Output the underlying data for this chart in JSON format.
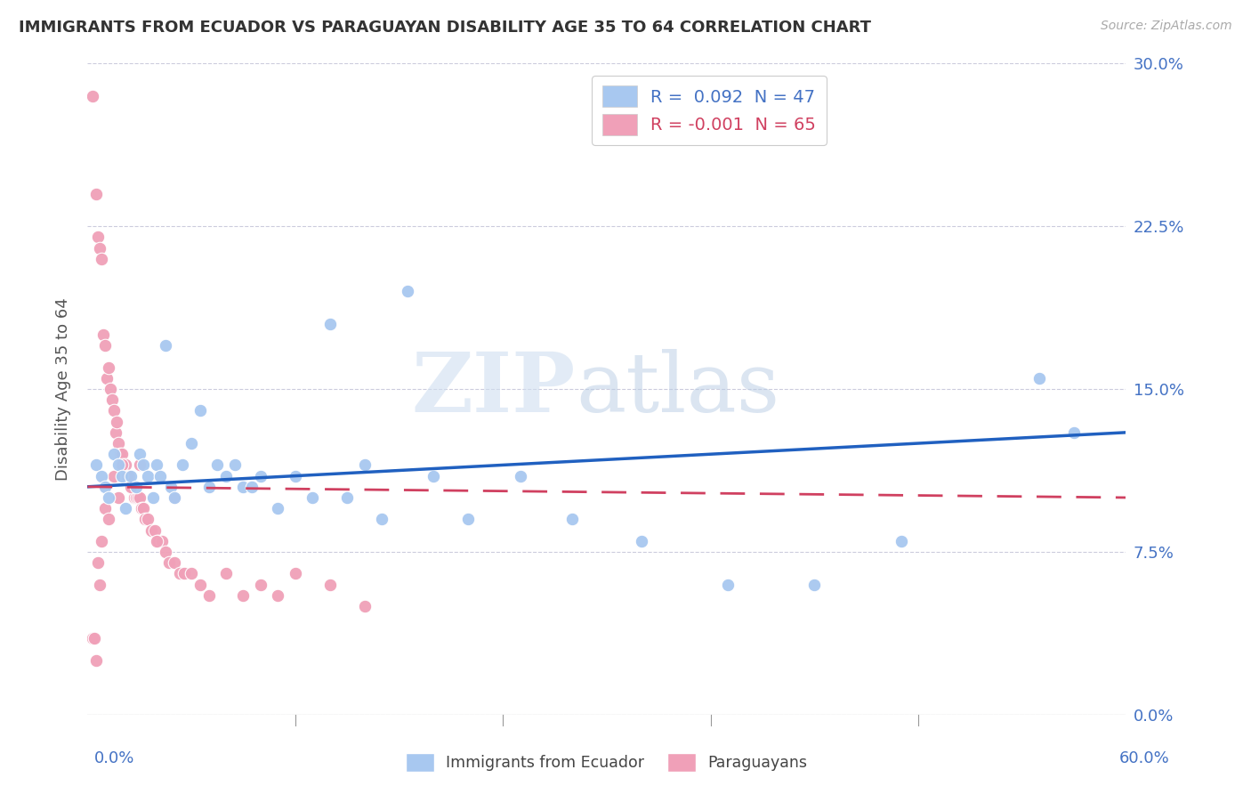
{
  "title": "IMMIGRANTS FROM ECUADOR VS PARAGUAYAN DISABILITY AGE 35 TO 64 CORRELATION CHART",
  "source": "Source: ZipAtlas.com",
  "ylabel": "Disability Age 35 to 64",
  "ytick_labels": [
    "0.0%",
    "7.5%",
    "15.0%",
    "22.5%",
    "30.0%"
  ],
  "ytick_values": [
    0.0,
    0.075,
    0.15,
    0.225,
    0.3
  ],
  "xlim": [
    0.0,
    0.6
  ],
  "ylim": [
    0.0,
    0.3
  ],
  "legend_blue_R": " 0.092",
  "legend_blue_N": "47",
  "legend_pink_R": "-0.001",
  "legend_pink_N": "65",
  "watermark_zip": "ZIP",
  "watermark_atlas": "atlas",
  "blue_color": "#a8c8f0",
  "pink_color": "#f0a0b8",
  "trendline_blue": "#2060c0",
  "trendline_pink": "#d04060",
  "blue_scatter_x": [
    0.005,
    0.008,
    0.01,
    0.012,
    0.015,
    0.018,
    0.02,
    0.022,
    0.025,
    0.028,
    0.03,
    0.032,
    0.035,
    0.038,
    0.04,
    0.042,
    0.045,
    0.048,
    0.05,
    0.055,
    0.06,
    0.065,
    0.07,
    0.075,
    0.08,
    0.085,
    0.09,
    0.095,
    0.1,
    0.11,
    0.12,
    0.13,
    0.14,
    0.15,
    0.16,
    0.17,
    0.185,
    0.2,
    0.22,
    0.25,
    0.28,
    0.32,
    0.37,
    0.42,
    0.47,
    0.55,
    0.57
  ],
  "blue_scatter_y": [
    0.115,
    0.11,
    0.105,
    0.1,
    0.12,
    0.115,
    0.11,
    0.095,
    0.11,
    0.105,
    0.12,
    0.115,
    0.11,
    0.1,
    0.115,
    0.11,
    0.17,
    0.105,
    0.1,
    0.115,
    0.125,
    0.14,
    0.105,
    0.115,
    0.11,
    0.115,
    0.105,
    0.105,
    0.11,
    0.095,
    0.11,
    0.1,
    0.18,
    0.1,
    0.115,
    0.09,
    0.195,
    0.11,
    0.09,
    0.11,
    0.09,
    0.08,
    0.06,
    0.06,
    0.08,
    0.155,
    0.13
  ],
  "pink_scatter_x": [
    0.003,
    0.005,
    0.006,
    0.007,
    0.008,
    0.009,
    0.01,
    0.011,
    0.012,
    0.013,
    0.014,
    0.015,
    0.016,
    0.017,
    0.018,
    0.019,
    0.02,
    0.021,
    0.022,
    0.023,
    0.024,
    0.025,
    0.026,
    0.027,
    0.028,
    0.029,
    0.03,
    0.031,
    0.032,
    0.033,
    0.035,
    0.037,
    0.039,
    0.041,
    0.043,
    0.045,
    0.047,
    0.05,
    0.053,
    0.056,
    0.06,
    0.065,
    0.07,
    0.08,
    0.09,
    0.1,
    0.11,
    0.12,
    0.14,
    0.16,
    0.003,
    0.004,
    0.005,
    0.006,
    0.007,
    0.008,
    0.01,
    0.012,
    0.015,
    0.018,
    0.02,
    0.025,
    0.03,
    0.04,
    0.05
  ],
  "pink_scatter_y": [
    0.285,
    0.24,
    0.22,
    0.215,
    0.21,
    0.175,
    0.17,
    0.155,
    0.16,
    0.15,
    0.145,
    0.14,
    0.13,
    0.135,
    0.125,
    0.12,
    0.12,
    0.115,
    0.115,
    0.11,
    0.11,
    0.105,
    0.105,
    0.1,
    0.1,
    0.1,
    0.1,
    0.095,
    0.095,
    0.09,
    0.09,
    0.085,
    0.085,
    0.08,
    0.08,
    0.075,
    0.07,
    0.07,
    0.065,
    0.065,
    0.065,
    0.06,
    0.055,
    0.065,
    0.055,
    0.06,
    0.055,
    0.065,
    0.06,
    0.05,
    0.035,
    0.035,
    0.025,
    0.07,
    0.06,
    0.08,
    0.095,
    0.09,
    0.11,
    0.1,
    0.115,
    0.105,
    0.115,
    0.08,
    0.1
  ]
}
